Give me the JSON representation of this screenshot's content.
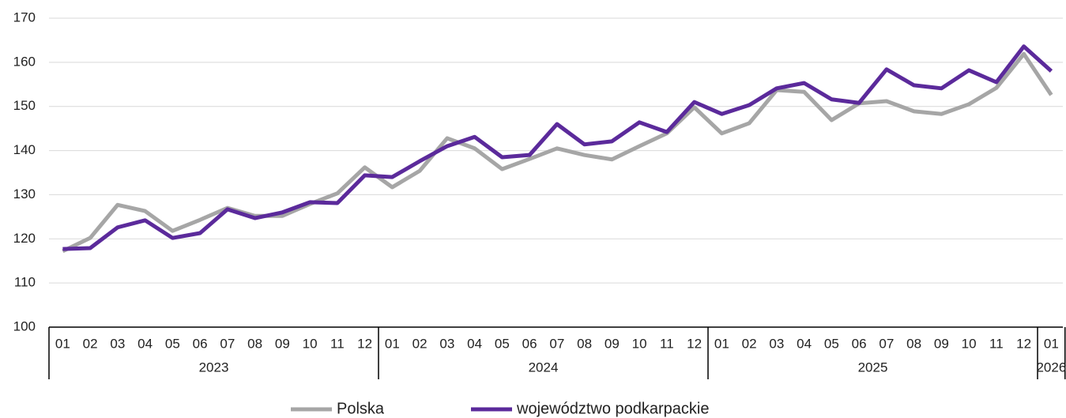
{
  "chart_data": {
    "type": "line",
    "categories": [
      "01",
      "02",
      "03",
      "04",
      "05",
      "06",
      "07",
      "08",
      "09",
      "10",
      "11",
      "12",
      "01",
      "02",
      "03",
      "04",
      "05",
      "06",
      "07",
      "08",
      "09",
      "10",
      "11",
      "12",
      "01",
      "02",
      "03",
      "04",
      "05",
      "06",
      "07",
      "08",
      "09",
      "10",
      "11",
      "12",
      "01"
    ],
    "year_groups": [
      "2023",
      "2024",
      "2025",
      "2026"
    ],
    "series": [
      {
        "name": "Polska",
        "color": "#a6a6a6",
        "values": [
          117.2,
          120.2,
          127.7,
          126.3,
          121.8,
          124.3,
          127.0,
          125.2,
          125.2,
          127.9,
          130.3,
          136.2,
          131.7,
          135.4,
          142.8,
          140.5,
          135.8,
          138.1,
          140.5,
          139.0,
          138.0,
          141.0,
          143.9,
          149.8,
          143.9,
          146.2,
          153.7,
          153.3,
          146.9,
          150.7,
          151.2,
          148.9,
          148.3,
          150.5,
          154.2,
          161.9,
          152.6
        ]
      },
      {
        "name": "województwo podkarpackie",
        "color": "#5b2a9b",
        "values": [
          117.7,
          117.9,
          122.6,
          124.2,
          120.2,
          121.3,
          126.7,
          124.7,
          126.0,
          128.3,
          128.1,
          134.4,
          134.0,
          137.6,
          141.0,
          143.1,
          138.5,
          139.0,
          146.0,
          141.4,
          142.1,
          146.4,
          144.2,
          151.0,
          148.3,
          150.3,
          154.1,
          155.3,
          151.6,
          150.8,
          158.4,
          154.8,
          154.1,
          158.2,
          155.5,
          163.6,
          158.0
        ]
      }
    ],
    "ylim": [
      100,
      170
    ],
    "yticks": [
      100,
      110,
      120,
      130,
      140,
      150,
      160,
      170
    ],
    "grid": true,
    "legend": "bottom"
  }
}
